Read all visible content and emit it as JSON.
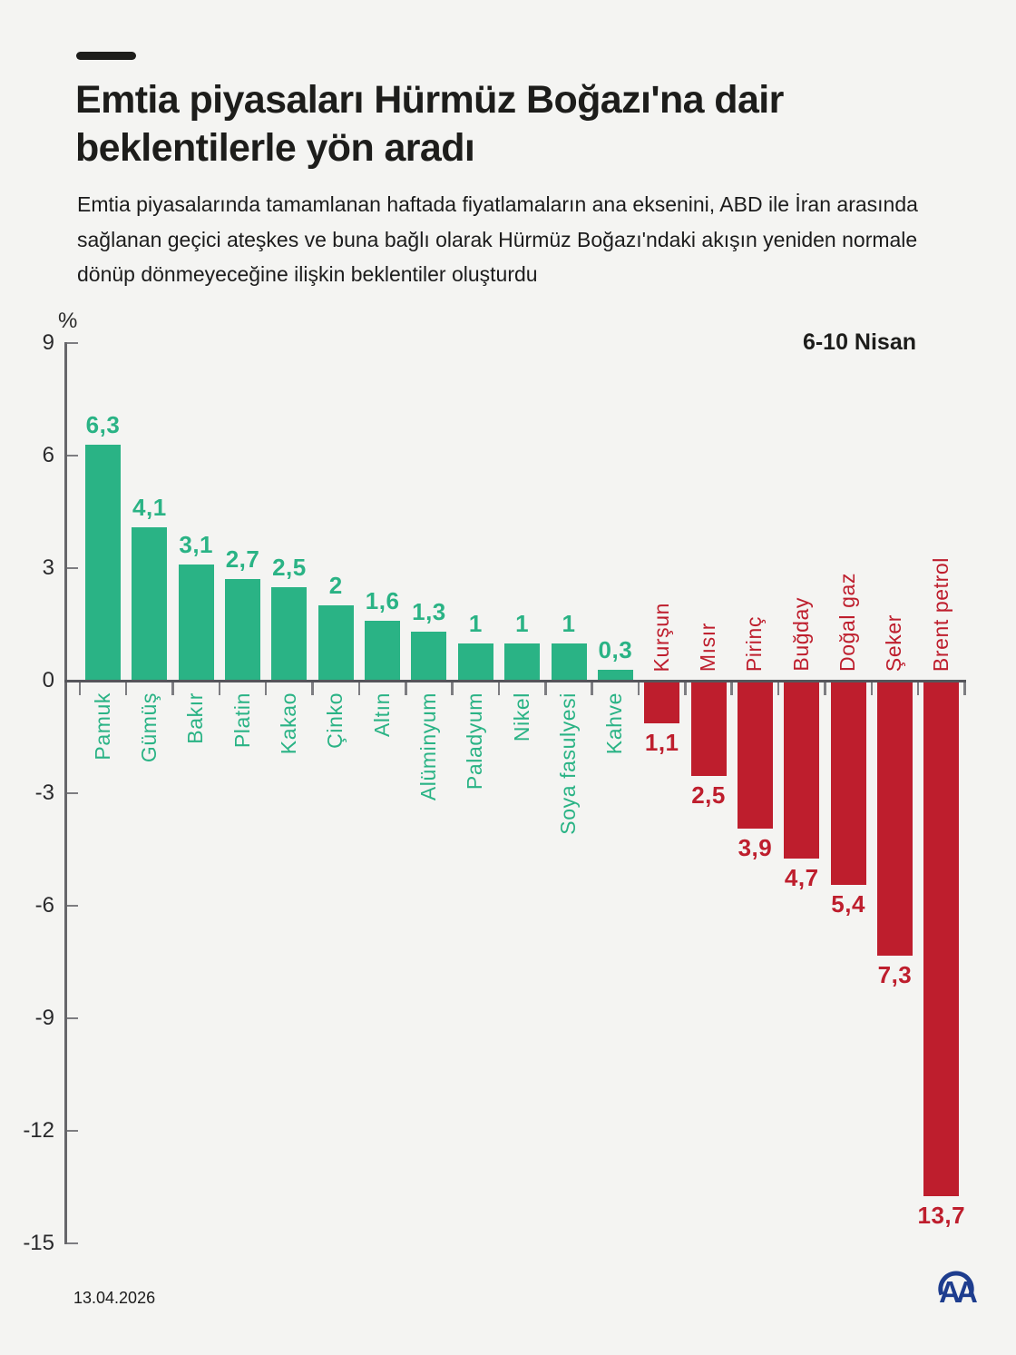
{
  "header": {
    "title": "Emtia piyasaları Hürmüz Boğazı'na dair beklentilerle yön aradı",
    "subtitle": "Emtia piyasalarında tamamlanan haftada fiyatlamaların ana eksenini, ABD ile İran arasında sağlanan geçici ateşkes ve buna bağlı olarak Hürmüz Boğazı'ndaki akışın yeniden normale dönüp dönmeyeceğine ilişkin beklentiler oluşturdu"
  },
  "chart_data": {
    "type": "bar",
    "title": "Emtia piyasaları Hürmüz Boğazı'na dair beklentilerle yön aradı",
    "period_label": "6-10 Nisan",
    "unit_label": "%",
    "categories": [
      "Pamuk",
      "Gümüş",
      "Bakır",
      "Platin",
      "Kakao",
      "Çinko",
      "Altın",
      "Alüminyum",
      "Paladyum",
      "Nikel",
      "Soya fasulyesi",
      "Kahve",
      "Kurşun",
      "Mısır",
      "Pirinç",
      "Buğday",
      "Doğal gaz",
      "Şeker",
      "Brent petrol"
    ],
    "values": [
      6.3,
      4.1,
      3.1,
      2.7,
      2.5,
      2,
      1.6,
      1.3,
      1,
      1,
      1,
      0.3,
      -1.1,
      -2.5,
      -3.9,
      -4.7,
      -5.4,
      -7.3,
      -13.7
    ],
    "value_labels": [
      "6,3",
      "4,1",
      "3,1",
      "2,7",
      "2,5",
      "2",
      "1,6",
      "1,3",
      "1",
      "1",
      "1",
      "0,3",
      "1,1",
      "2,5",
      "3,9",
      "4,7",
      "5,4",
      "7,3",
      "13,7"
    ],
    "y_ticks": [
      9,
      6,
      3,
      0,
      -3,
      -6,
      -9,
      -12,
      -15
    ],
    "ylim": [
      -15,
      9
    ],
    "grid": false,
    "legend": "none",
    "positive_color": "#2ab385",
    "negative_color": "#be1e2d"
  },
  "footer": {
    "date": "13.04.2026",
    "logo_alt": "AA"
  }
}
